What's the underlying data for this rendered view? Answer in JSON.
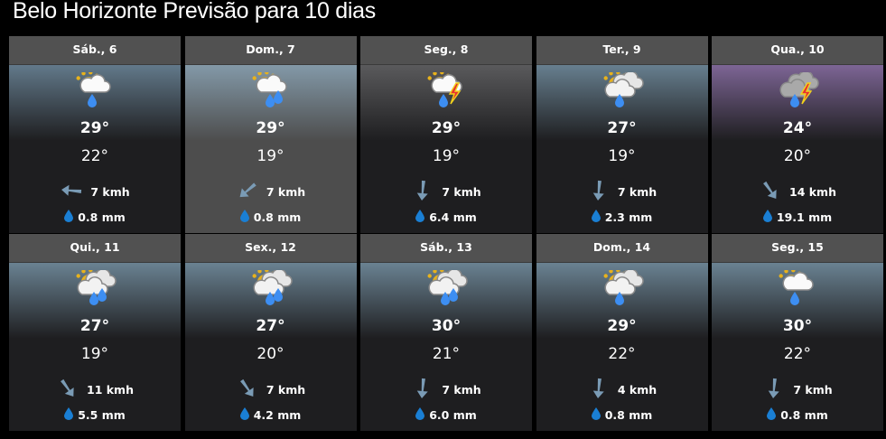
{
  "title": "Belo Horizonte Previsão para 10 dias",
  "colors": {
    "card_bg": "#1e1e20",
    "header_bg": "#515151",
    "wind_arrow": "#7a9bb5",
    "rain_drop": "#1a7fd4"
  },
  "days": [
    {
      "label": "Sáb., 6",
      "icon": "partly-cloudy-rain-icon",
      "sun": true,
      "clouds": 1,
      "drops": 1,
      "thunder": false,
      "high": "29°",
      "low": "22°",
      "wind": "7 kmh",
      "wind_rotation_deg": 95,
      "rain": "0.8 mm",
      "sky": "#62798a",
      "card": "#1e1e20"
    },
    {
      "label": "Dom., 7",
      "icon": "partly-cloudy-showers-icon",
      "sun": true,
      "clouds": 1,
      "drops": 2,
      "thunder": false,
      "high": "29°",
      "low": "19°",
      "wind": "7 kmh",
      "wind_rotation_deg": 50,
      "rain": "0.8 mm",
      "sky": "#8399a8",
      "card": "#4d4d4d"
    },
    {
      "label": "Seg., 8",
      "icon": "partly-cloudy-thunderstorm-icon",
      "sun": true,
      "clouds": 1,
      "drops": 1,
      "thunder": true,
      "high": "29°",
      "low": "19°",
      "wind": "7 kmh",
      "wind_rotation_deg": 5,
      "rain": "6.4 mm",
      "sky": "#5a5a5c",
      "card": "#1e1e20"
    },
    {
      "label": "Ter., 9",
      "icon": "partly-cloudy-rain-icon",
      "sun": true,
      "clouds": 2,
      "drops": 1,
      "thunder": false,
      "high": "27°",
      "low": "19°",
      "wind": "7 kmh",
      "wind_rotation_deg": 5,
      "rain": "2.3 mm",
      "sky": "#677f8f",
      "card": "#1e1e20"
    },
    {
      "label": "Qua., 10",
      "icon": "thunderstorm-icon",
      "sun": false,
      "clouds": 2,
      "drops": 1,
      "thunder": true,
      "high": "24°",
      "low": "20°",
      "wind": "14 kmh",
      "wind_rotation_deg": -35,
      "rain": "19.1 mm",
      "sky": "#7d6595",
      "card": "#1e1e20"
    },
    {
      "label": "Qui., 11",
      "icon": "partly-cloudy-showers-icon",
      "sun": true,
      "clouds": 2,
      "drops": 2,
      "thunder": false,
      "high": "27°",
      "low": "19°",
      "wind": "11 kmh",
      "wind_rotation_deg": -35,
      "rain": "5.5 mm",
      "sky": "#6a8292",
      "card": "#1e1e20"
    },
    {
      "label": "Sex., 12",
      "icon": "partly-cloudy-showers-icon",
      "sun": true,
      "clouds": 2,
      "drops": 2,
      "thunder": false,
      "high": "27°",
      "low": "20°",
      "wind": "7 kmh",
      "wind_rotation_deg": -35,
      "rain": "4.2 mm",
      "sky": "#6a8292",
      "card": "#1e1e20"
    },
    {
      "label": "Sáb., 13",
      "icon": "partly-cloudy-showers-icon",
      "sun": true,
      "clouds": 2,
      "drops": 2,
      "thunder": false,
      "high": "30°",
      "low": "21°",
      "wind": "7 kmh",
      "wind_rotation_deg": 5,
      "rain": "6.0 mm",
      "sky": "#6a8292",
      "card": "#1e1e20"
    },
    {
      "label": "Dom., 14",
      "icon": "partly-cloudy-rain-icon",
      "sun": true,
      "clouds": 2,
      "drops": 1,
      "thunder": false,
      "high": "29°",
      "low": "22°",
      "wind": "4 kmh",
      "wind_rotation_deg": 5,
      "rain": "0.8 mm",
      "sky": "#6a8292",
      "card": "#1e1e20"
    },
    {
      "label": "Seg., 15",
      "icon": "partly-cloudy-rain-icon",
      "sun": true,
      "clouds": 1,
      "drops": 1,
      "thunder": false,
      "high": "30°",
      "low": "22°",
      "wind": "7 kmh",
      "wind_rotation_deg": 5,
      "rain": "0.8 mm",
      "sky": "#6a8292",
      "card": "#1e1e20"
    }
  ]
}
